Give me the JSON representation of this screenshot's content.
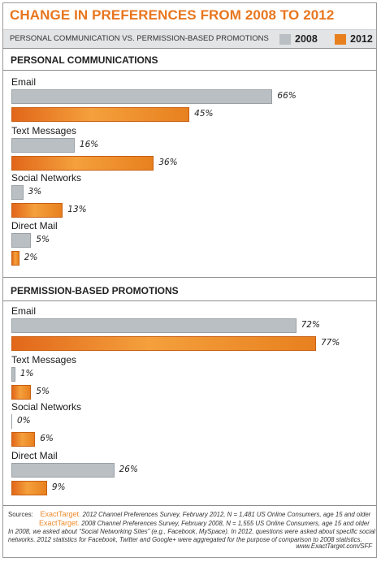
{
  "title": "CHANGE IN PREFERENCES FROM 2008 TO 2012",
  "subtitle": "PERSONAL COMMUNICATION VS. PERMISSION-BASED PROMOTIONS",
  "colors": {
    "y2008": "#b9bfc3",
    "y2012": "#e8801f",
    "title": "#e8761e"
  },
  "chart_data": [
    {
      "type": "bar",
      "orientation": "horizontal",
      "title": "PERSONAL COMMUNICATIONS",
      "categories": [
        "Email",
        "Text Messages",
        "Social Networks",
        "Direct Mail"
      ],
      "series": [
        {
          "name": "2008",
          "values": [
            66,
            16,
            3,
            5
          ]
        },
        {
          "name": "2012",
          "values": [
            45,
            36,
            13,
            2
          ]
        }
      ],
      "value_labels": {
        "2008": [
          "66%",
          "16%",
          "3%",
          "5%"
        ],
        "2012": [
          "45%",
          "36%",
          "13%",
          "2%"
        ]
      },
      "legend": "top-right",
      "grid": false
    },
    {
      "type": "bar",
      "orientation": "horizontal",
      "title": "PERMISSION-BASED PROMOTIONS",
      "categories": [
        "Email",
        "Text Messages",
        "Social Networks",
        "Direct Mail"
      ],
      "series": [
        {
          "name": "2008",
          "values": [
            72,
            1,
            0,
            26
          ]
        },
        {
          "name": "2012",
          "values": [
            77,
            5,
            6,
            9
          ]
        }
      ],
      "value_labels": {
        "2008": [
          "72%",
          "1%",
          "0%",
          "26%"
        ],
        "2012": [
          "77%",
          "5%",
          "6%",
          "9%"
        ]
      },
      "legend": "top-right",
      "grid": false
    }
  ],
  "footer": {
    "label": "Sources:",
    "brand": "ExactTarget.",
    "line1": "2012 Channel Preferences Survey, February 2012, N = 1,481  US Online Consumers, age 15 and older",
    "line2": "2008 Channel Preferences Survey, February 2008, N = 1,555  US Online Consumers, age 15 and older",
    "line3": "In 2008, we asked about “Social Networking Sites” (e.g., Facebook, MySpace). In 2012, questions were asked about specific social",
    "line4": "networks. 2012 statistics for Facebook, Twitter and Google+ were aggregated for the purpose of comparison to 2008 statistics.",
    "url": "www.ExactTarget.com/SFF"
  }
}
